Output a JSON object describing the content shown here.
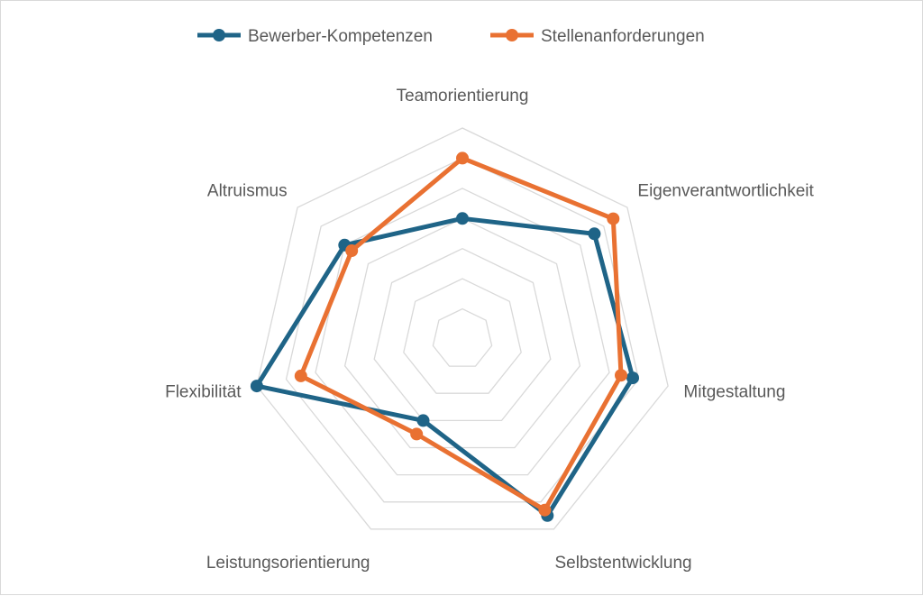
{
  "chart_data": {
    "type": "radar",
    "title": "",
    "categories": [
      "Teamorientierung",
      "Eigenverantwortlichkeit",
      "Mitgestaltung",
      "Selbstentwicklung",
      "Leistungsorientierung",
      "Flexibilität",
      "Altruismus"
    ],
    "rlim": [
      0,
      7
    ],
    "grid": true,
    "grid_rings": 7,
    "legend_position": "top",
    "series": [
      {
        "name": "Bewerber-Kompetenzen",
        "color": "#1f6487",
        "values": [
          4.0,
          5.6,
          5.8,
          6.5,
          3.0,
          7.0,
          5.0
        ]
      },
      {
        "name": "Stellenanforderungen",
        "color": "#e97132",
        "values": [
          6.0,
          6.4,
          5.4,
          6.3,
          3.5,
          5.5,
          4.7
        ]
      }
    ]
  }
}
